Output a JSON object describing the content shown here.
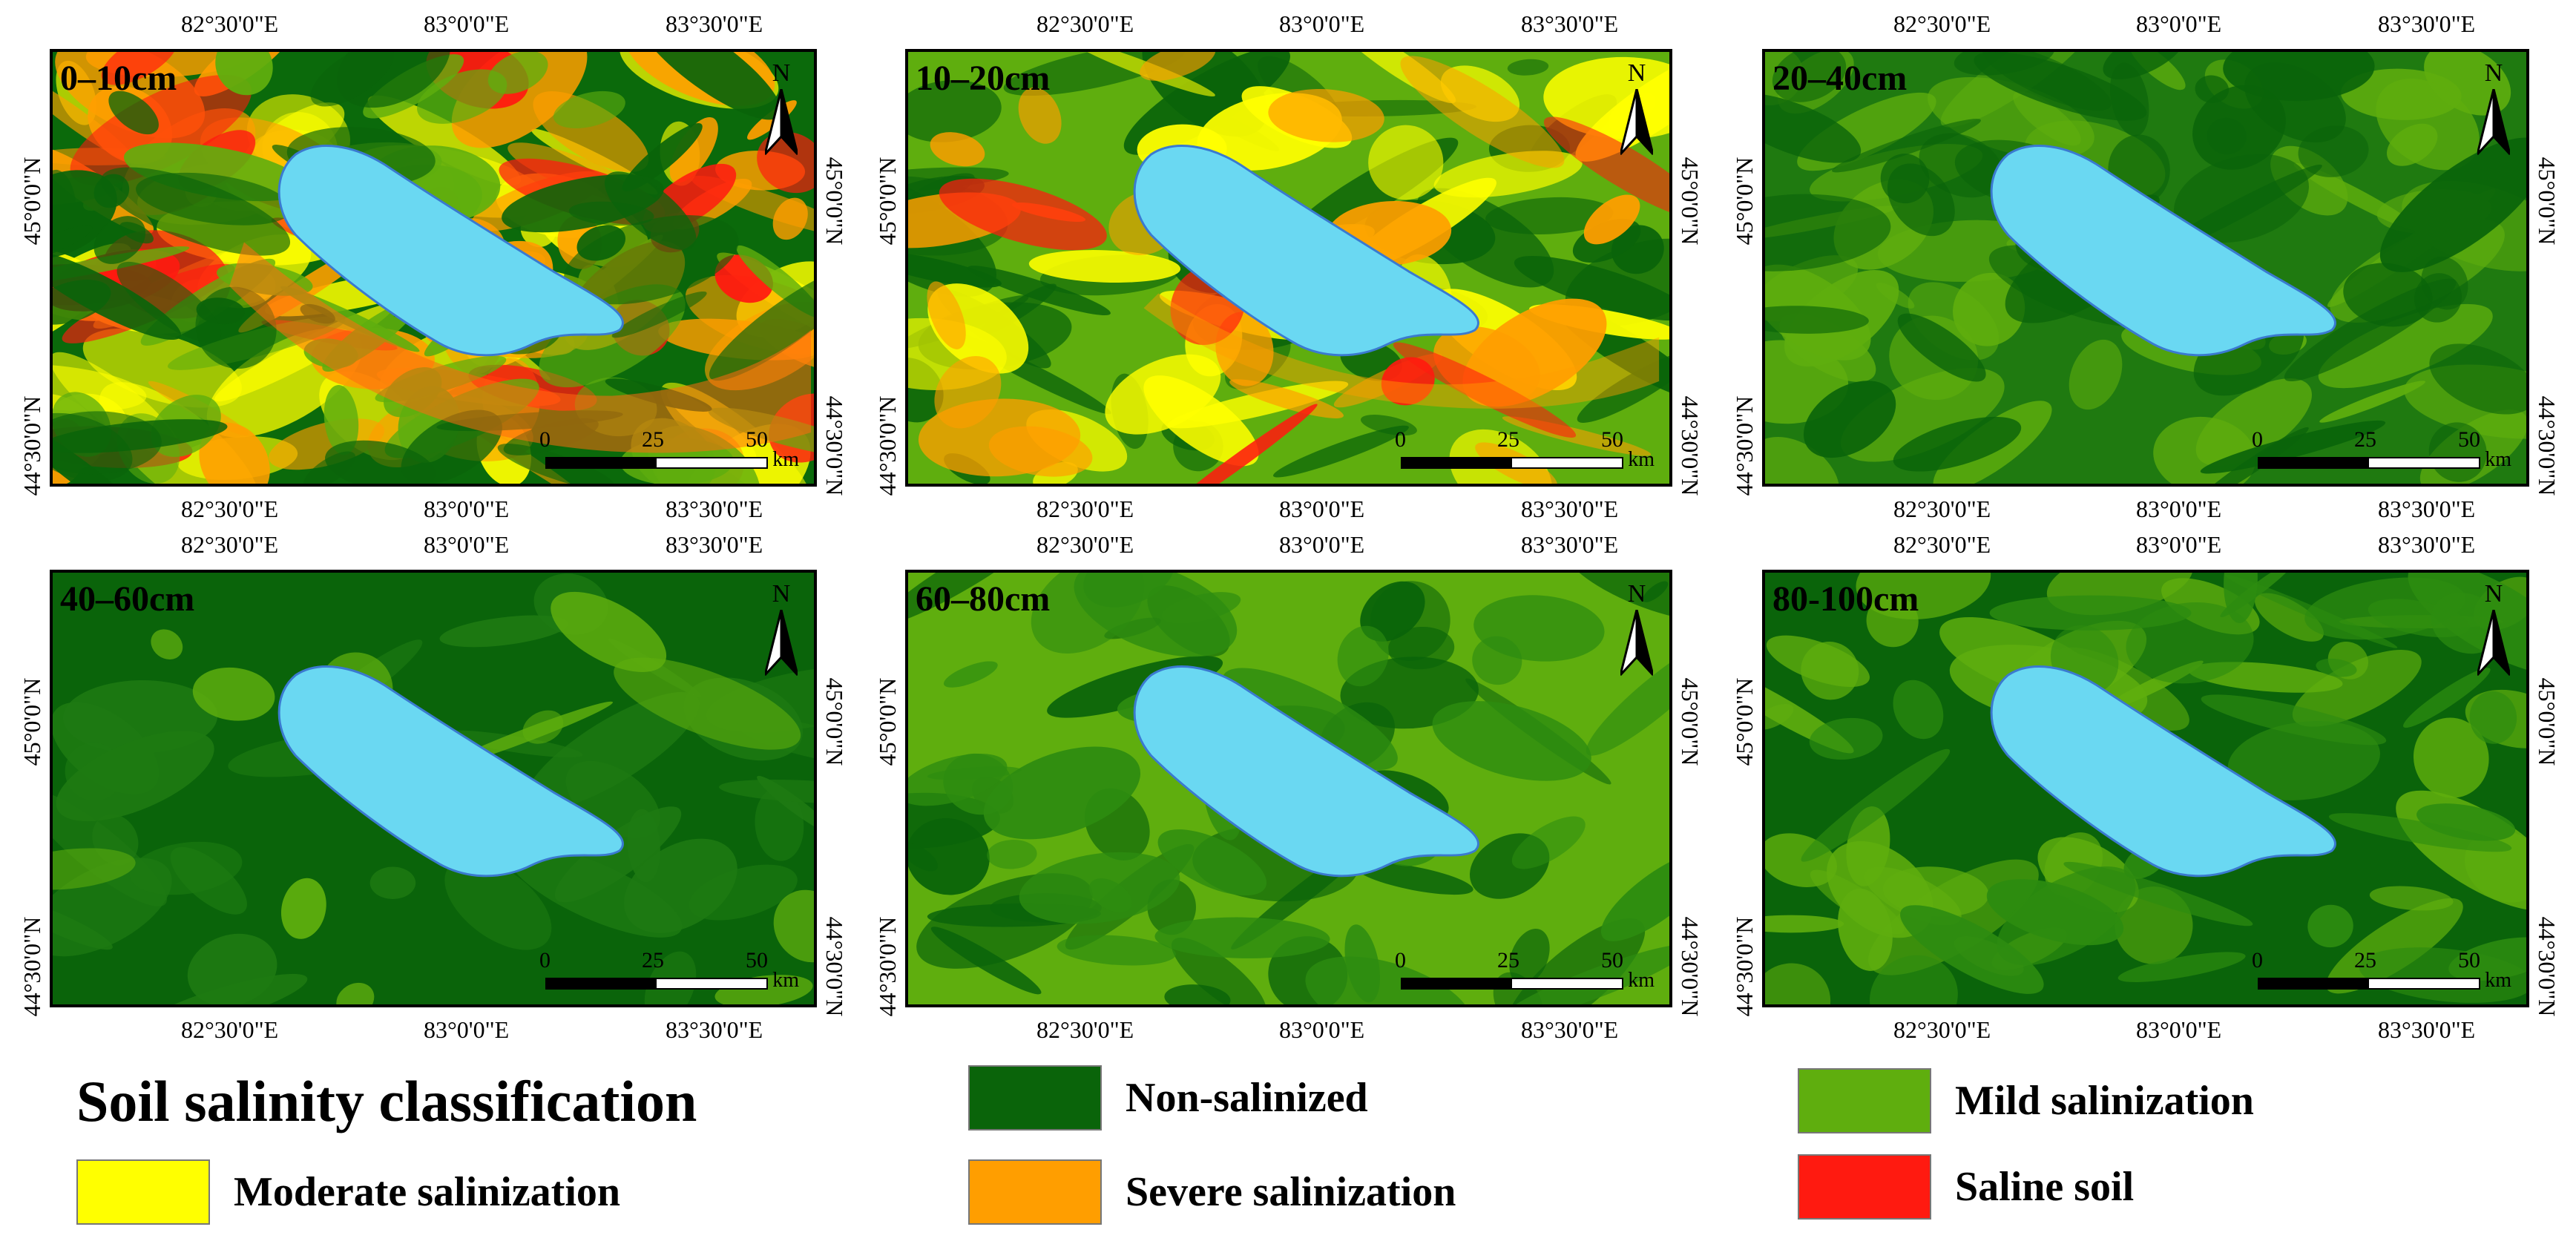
{
  "panels": [
    {
      "depth": "0–10cm",
      "palette": "p0"
    },
    {
      "depth": "10–20cm",
      "palette": "p1"
    },
    {
      "depth": "20–40cm",
      "palette": "p2"
    },
    {
      "depth": "40–60cm",
      "palette": "p3"
    },
    {
      "depth": "60–80cm",
      "palette": "p4"
    },
    {
      "depth": "80-100cm",
      "palette": "p5"
    }
  ],
  "axes": {
    "lon_ticks": [
      "82°30'0\"E",
      "83°0'0\"E",
      "83°30'0\"E"
    ],
    "lat_ticks": [
      "45°0'0\"N",
      "44°30'0\"N"
    ]
  },
  "north_label": "N",
  "scalebar": {
    "labels": [
      "0",
      "25",
      "50"
    ],
    "unit": "km"
  },
  "legend": {
    "title": "Soil salinity classification",
    "items": [
      {
        "label": "Non-salinized",
        "color": "#0a640a"
      },
      {
        "label": "Mild salinization",
        "color": "#5fae0e"
      },
      {
        "label": "Moderate salinization",
        "color": "#ffff00"
      },
      {
        "label": "Severe salinization",
        "color": "#ff9e00"
      },
      {
        "label": "Saline soil",
        "color": "#ff1a10"
      }
    ]
  },
  "colors": {
    "lake": "#6ad8f2",
    "lake_outline": "#3a7ad0"
  }
}
